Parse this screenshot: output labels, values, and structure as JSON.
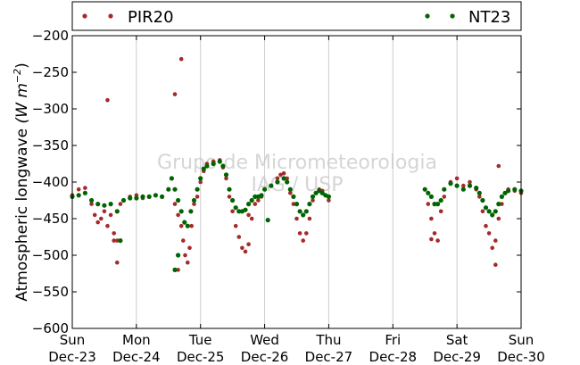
{
  "chart_data": {
    "type": "scatter",
    "title": "",
    "xlabel": "",
    "ylabel": "Atmospheric longwave",
    "ylabel_unit": "(W m⁻²)",
    "ylim": [
      -600,
      -200
    ],
    "yticks": [
      -600,
      -550,
      -500,
      -450,
      -400,
      -350,
      -300,
      -250,
      -200
    ],
    "xlim_days": [
      23,
      30
    ],
    "xticks": [
      {
        "day": "Sun",
        "date": "Dec-23"
      },
      {
        "day": "Mon",
        "date": "Dec-24"
      },
      {
        "day": "Tue",
        "date": "Dec-25"
      },
      {
        "day": "Wed",
        "date": "Dec-26"
      },
      {
        "day": "Thu",
        "date": "Dec-27"
      },
      {
        "day": "Fri",
        "date": "Dec-28"
      },
      {
        "day": "Sat",
        "date": "Dec-29"
      },
      {
        "day": "Sun",
        "date": "Dec-30"
      }
    ],
    "grid": "vertical",
    "legend": "top",
    "watermark": [
      "Grupo de Micrometeorologia",
      "IAG / USP"
    ],
    "series": [
      {
        "name": "PIR20",
        "color": "#a52a2a",
        "points": [
          [
            23.0,
            -418
          ],
          [
            23.1,
            -410
          ],
          [
            23.2,
            -408
          ],
          [
            23.3,
            -430
          ],
          [
            23.35,
            -445
          ],
          [
            23.4,
            -455
          ],
          [
            23.45,
            -450
          ],
          [
            23.5,
            -440
          ],
          [
            23.55,
            -460
          ],
          [
            23.6,
            -445
          ],
          [
            23.65,
            -470
          ],
          [
            23.7,
            -480
          ],
          [
            23.75,
            -430
          ],
          [
            23.8,
            -425
          ],
          [
            23.9,
            -420
          ],
          [
            24.0,
            -418
          ],
          [
            24.1,
            -422
          ],
          [
            24.2,
            -420
          ],
          [
            24.3,
            -418
          ],
          [
            24.4,
            -420
          ],
          [
            24.5,
            -410
          ],
          [
            24.55,
            -395
          ],
          [
            24.6,
            -430
          ],
          [
            24.65,
            -445
          ],
          [
            24.7,
            -460
          ],
          [
            24.73,
            -480
          ],
          [
            24.76,
            -500
          ],
          [
            24.8,
            -510
          ],
          [
            24.83,
            -490
          ],
          [
            24.86,
            -460
          ],
          [
            24.9,
            -430
          ],
          [
            24.95,
            -420
          ],
          [
            25.0,
            -400
          ],
          [
            25.05,
            -385
          ],
          [
            25.1,
            -375
          ],
          [
            25.2,
            -372
          ],
          [
            25.3,
            -370
          ],
          [
            25.35,
            -380
          ],
          [
            25.4,
            -395
          ],
          [
            25.45,
            -420
          ],
          [
            25.5,
            -440
          ],
          [
            25.55,
            -460
          ],
          [
            25.6,
            -475
          ],
          [
            25.65,
            -490
          ],
          [
            25.7,
            -495
          ],
          [
            25.75,
            -485
          ],
          [
            25.8,
            -450
          ],
          [
            25.85,
            -430
          ],
          [
            25.9,
            -425
          ],
          [
            25.95,
            -420
          ],
          [
            26.0,
            -410
          ],
          [
            26.1,
            -405
          ],
          [
            26.2,
            -395
          ],
          [
            26.25,
            -390
          ],
          [
            26.3,
            -388
          ],
          [
            26.35,
            -395
          ],
          [
            26.4,
            -415
          ],
          [
            26.45,
            -430
          ],
          [
            26.5,
            -450
          ],
          [
            26.55,
            -470
          ],
          [
            26.6,
            -480
          ],
          [
            26.65,
            -470
          ],
          [
            26.7,
            -450
          ],
          [
            26.75,
            -425
          ],
          [
            26.8,
            -415
          ],
          [
            26.85,
            -410
          ],
          [
            26.9,
            -412
          ],
          [
            26.95,
            -418
          ],
          [
            27.0,
            -425
          ],
          [
            23.55,
            -288
          ],
          [
            23.65,
            -480
          ],
          [
            23.7,
            -510
          ],
          [
            24.6,
            -280
          ],
          [
            24.7,
            -232
          ],
          [
            24.65,
            -520
          ],
          [
            25.75,
            -445
          ],
          [
            28.5,
            -410
          ],
          [
            28.55,
            -430
          ],
          [
            28.6,
            -450
          ],
          [
            28.65,
            -470
          ],
          [
            28.7,
            -480
          ],
          [
            28.75,
            -440
          ],
          [
            28.8,
            -420
          ],
          [
            28.9,
            -400
          ],
          [
            29.0,
            -395
          ],
          [
            29.1,
            -405
          ],
          [
            29.2,
            -400
          ],
          [
            29.3,
            -410
          ],
          [
            29.35,
            -420
          ],
          [
            29.4,
            -440
          ],
          [
            29.45,
            -460
          ],
          [
            29.5,
            -470
          ],
          [
            29.55,
            -490
          ],
          [
            29.6,
            -480
          ],
          [
            29.65,
            -450
          ],
          [
            29.7,
            -430
          ],
          [
            29.75,
            -415
          ],
          [
            29.8,
            -410
          ],
          [
            29.9,
            -412
          ],
          [
            30.0,
            -415
          ],
          [
            29.6,
            -513
          ],
          [
            29.65,
            -378
          ],
          [
            28.6,
            -478
          ]
        ]
      },
      {
        "name": "NT23",
        "color": "#006400",
        "points": [
          [
            23.0,
            -420
          ],
          [
            23.1,
            -418
          ],
          [
            23.2,
            -415
          ],
          [
            23.3,
            -425
          ],
          [
            23.4,
            -430
          ],
          [
            23.5,
            -432
          ],
          [
            23.6,
            -430
          ],
          [
            23.7,
            -440
          ],
          [
            23.75,
            -480
          ],
          [
            23.8,
            -425
          ],
          [
            23.9,
            -422
          ],
          [
            24.0,
            -422
          ],
          [
            24.1,
            -420
          ],
          [
            24.2,
            -420
          ],
          [
            24.3,
            -418
          ],
          [
            24.4,
            -420
          ],
          [
            24.5,
            -410
          ],
          [
            24.55,
            -395
          ],
          [
            24.6,
            -410
          ],
          [
            24.65,
            -425
          ],
          [
            24.7,
            -440
          ],
          [
            24.75,
            -455
          ],
          [
            24.8,
            -460
          ],
          [
            24.85,
            -440
          ],
          [
            24.9,
            -425
          ],
          [
            24.95,
            -410
          ],
          [
            25.0,
            -395
          ],
          [
            25.05,
            -382
          ],
          [
            25.1,
            -378
          ],
          [
            25.2,
            -375
          ],
          [
            25.3,
            -372
          ],
          [
            25.35,
            -378
          ],
          [
            25.4,
            -390
          ],
          [
            25.45,
            -410
          ],
          [
            25.5,
            -425
          ],
          [
            25.55,
            -435
          ],
          [
            25.6,
            -440
          ],
          [
            25.65,
            -440
          ],
          [
            25.7,
            -438
          ],
          [
            25.75,
            -430
          ],
          [
            25.8,
            -425
          ],
          [
            25.85,
            -420
          ],
          [
            25.9,
            -420
          ],
          [
            25.95,
            -418
          ],
          [
            26.0,
            -410
          ],
          [
            26.1,
            -405
          ],
          [
            26.2,
            -400
          ],
          [
            26.3,
            -395
          ],
          [
            26.35,
            -400
          ],
          [
            26.4,
            -410
          ],
          [
            26.45,
            -420
          ],
          [
            26.5,
            -430
          ],
          [
            26.55,
            -440
          ],
          [
            26.6,
            -445
          ],
          [
            26.65,
            -440
          ],
          [
            26.7,
            -430
          ],
          [
            26.75,
            -420
          ],
          [
            26.8,
            -415
          ],
          [
            26.85,
            -412
          ],
          [
            26.9,
            -415
          ],
          [
            26.95,
            -418
          ],
          [
            27.0,
            -420
          ],
          [
            24.65,
            -500
          ],
          [
            24.6,
            -520
          ],
          [
            26.05,
            -452
          ],
          [
            28.5,
            -410
          ],
          [
            28.55,
            -415
          ],
          [
            28.6,
            -420
          ],
          [
            28.65,
            -430
          ],
          [
            28.7,
            -430
          ],
          [
            28.75,
            -425
          ],
          [
            28.8,
            -410
          ],
          [
            28.9,
            -402
          ],
          [
            29.0,
            -405
          ],
          [
            29.1,
            -410
          ],
          [
            29.2,
            -405
          ],
          [
            29.3,
            -408
          ],
          [
            29.35,
            -415
          ],
          [
            29.4,
            -425
          ],
          [
            29.45,
            -435
          ],
          [
            29.5,
            -440
          ],
          [
            29.55,
            -445
          ],
          [
            29.6,
            -440
          ],
          [
            29.65,
            -430
          ],
          [
            29.7,
            -420
          ],
          [
            29.75,
            -415
          ],
          [
            29.8,
            -412
          ],
          [
            29.9,
            -410
          ],
          [
            30.0,
            -412
          ]
        ]
      }
    ]
  }
}
